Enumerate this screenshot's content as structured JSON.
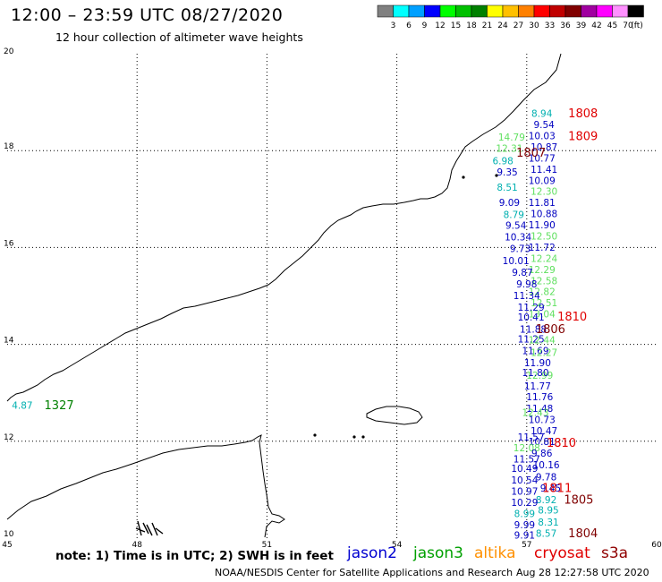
{
  "header": {
    "title": "12:00 – 23:59 UTC 08/27/2020",
    "subtitle": "12 hour collection of altimeter wave heights"
  },
  "legend": {
    "colors": [
      "#808080",
      "#00ffff",
      "#00a0ff",
      "#0000ff",
      "#00ff00",
      "#00c000",
      "#008000",
      "#ffff00",
      "#ffc000",
      "#ff8000",
      "#ff0000",
      "#c00000",
      "#800000",
      "#a000a0",
      "#ff00ff",
      "#ff90ff",
      "#000000"
    ],
    "labels": [
      "3",
      "6",
      "9",
      "12",
      "15",
      "18",
      "21",
      "24",
      "27",
      "30",
      "33",
      "36",
      "39",
      "42",
      "45",
      "70",
      "(ft)"
    ]
  },
  "axes": {
    "lon_ticks": [
      "45",
      "48",
      "51",
      "54",
      "57",
      "60"
    ],
    "lat_ticks": [
      "20",
      "18",
      "16",
      "14",
      "12",
      "10"
    ]
  },
  "observations": [
    {
      "lon": 57.35,
      "lat": 18.75,
      "v": "8.94",
      "c": "#00b0b0"
    },
    {
      "lon": 57.4,
      "lat": 18.52,
      "v": "9.54",
      "c": "#0000c0"
    },
    {
      "lon": 57.35,
      "lat": 18.29,
      "v": "10.03",
      "c": "#0000c0"
    },
    {
      "lon": 57.4,
      "lat": 18.06,
      "v": "10.87",
      "c": "#0000c0"
    },
    {
      "lon": 57.35,
      "lat": 17.83,
      "v": "10.77",
      "c": "#0000c0"
    },
    {
      "lon": 57.4,
      "lat": 17.6,
      "v": "11.41",
      "c": "#0000c0"
    },
    {
      "lon": 57.35,
      "lat": 17.37,
      "v": "10.09",
      "c": "#0000c0"
    },
    {
      "lon": 57.4,
      "lat": 17.14,
      "v": "12.30",
      "c": "#60e060"
    },
    {
      "lon": 57.35,
      "lat": 16.91,
      "v": "11.81",
      "c": "#0000c0"
    },
    {
      "lon": 57.4,
      "lat": 16.68,
      "v": "10.88",
      "c": "#0000c0"
    },
    {
      "lon": 57.35,
      "lat": 16.45,
      "v": "11.90",
      "c": "#0000c0"
    },
    {
      "lon": 57.4,
      "lat": 16.22,
      "v": "12.50",
      "c": "#60e060"
    },
    {
      "lon": 57.35,
      "lat": 15.99,
      "v": "11.72",
      "c": "#0000c0"
    },
    {
      "lon": 57.4,
      "lat": 15.76,
      "v": "12.24",
      "c": "#60e060"
    },
    {
      "lon": 57.35,
      "lat": 15.53,
      "v": "12.29",
      "c": "#60e060"
    },
    {
      "lon": 57.4,
      "lat": 15.3,
      "v": "12.58",
      "c": "#60e060"
    },
    {
      "lon": 57.35,
      "lat": 15.07,
      "v": "12.82",
      "c": "#60e060"
    },
    {
      "lon": 57.4,
      "lat": 14.84,
      "v": "12.51",
      "c": "#60e060"
    },
    {
      "lon": 57.35,
      "lat": 14.61,
      "v": "13.04",
      "c": "#60e060"
    },
    {
      "lon": 56.65,
      "lat": 18.26,
      "v": "14.79",
      "c": "#60e060"
    },
    {
      "lon": 56.6,
      "lat": 18.03,
      "v": "12.31",
      "c": "#60e060"
    },
    {
      "lon": 56.45,
      "lat": 17.77,
      "v": "6.98",
      "c": "#00b0b0"
    },
    {
      "lon": 56.55,
      "lat": 17.54,
      "v": "9.35",
      "c": "#0000c0"
    },
    {
      "lon": 56.55,
      "lat": 17.23,
      "v": "8.51",
      "c": "#00b0b0"
    },
    {
      "lon": 56.6,
      "lat": 16.91,
      "v": "9.09",
      "c": "#0000c0"
    },
    {
      "lon": 56.7,
      "lat": 16.66,
      "v": "8.79",
      "c": "#00b0b0"
    },
    {
      "lon": 56.75,
      "lat": 16.44,
      "v": "9.54",
      "c": "#0000c0"
    },
    {
      "lon": 56.8,
      "lat": 16.2,
      "v": "10.34",
      "c": "#0000c0"
    },
    {
      "lon": 56.85,
      "lat": 15.96,
      "v": "9.73",
      "c": "#0000c0"
    },
    {
      "lon": 56.75,
      "lat": 15.71,
      "v": "10.01",
      "c": "#0000c0"
    },
    {
      "lon": 56.9,
      "lat": 15.47,
      "v": "9.87",
      "c": "#0000c0"
    },
    {
      "lon": 57.0,
      "lat": 15.23,
      "v": "9.98",
      "c": "#0000c0"
    },
    {
      "lon": 57.0,
      "lat": 14.99,
      "v": "11.34",
      "c": "#0000c0"
    },
    {
      "lon": 57.1,
      "lat": 14.75,
      "v": "11.29",
      "c": "#0000c0"
    },
    {
      "lon": 57.1,
      "lat": 14.55,
      "v": "10.41",
      "c": "#0000c0"
    },
    {
      "lon": 57.15,
      "lat": 14.3,
      "v": "11.88",
      "c": "#0000c0"
    },
    {
      "lon": 57.1,
      "lat": 14.09,
      "v": "11.25",
      "c": "#0000c0"
    },
    {
      "lon": 57.35,
      "lat": 14.08,
      "v": "12.44",
      "c": "#60e060"
    },
    {
      "lon": 57.2,
      "lat": 13.85,
      "v": "11.69",
      "c": "#0000c0"
    },
    {
      "lon": 57.4,
      "lat": 13.82,
      "v": "12.27",
      "c": "#60e060"
    },
    {
      "lon": 57.25,
      "lat": 13.6,
      "v": "11.90",
      "c": "#0000c0"
    },
    {
      "lon": 57.3,
      "lat": 13.35,
      "v": "12.99",
      "c": "#60e060"
    },
    {
      "lon": 57.2,
      "lat": 13.4,
      "v": "11.80",
      "c": "#0000c0"
    },
    {
      "lon": 57.25,
      "lat": 13.12,
      "v": "11.77",
      "c": "#0000c0"
    },
    {
      "lon": 57.3,
      "lat": 12.9,
      "v": "11.76",
      "c": "#0000c0"
    },
    {
      "lon": 57.3,
      "lat": 12.66,
      "v": "11.48",
      "c": "#0000c0"
    },
    {
      "lon": 57.2,
      "lat": 12.58,
      "v": "12.43",
      "c": "#60e060"
    },
    {
      "lon": 57.35,
      "lat": 12.43,
      "v": "10.73",
      "c": "#0000c0"
    },
    {
      "lon": 57.4,
      "lat": 12.2,
      "v": "10.47",
      "c": "#0000c0"
    },
    {
      "lon": 57.1,
      "lat": 12.07,
      "v": "11.57",
      "c": "#0000c0"
    },
    {
      "lon": 57.35,
      "lat": 11.98,
      "v": "10.81",
      "c": "#0000c0"
    },
    {
      "lon": 57.0,
      "lat": 11.85,
      "v": "12.08",
      "c": "#60e060"
    },
    {
      "lon": 57.35,
      "lat": 11.74,
      "v": "9.86",
      "c": "#0000c0"
    },
    {
      "lon": 57.0,
      "lat": 11.62,
      "v": "11.57",
      "c": "#0000c0"
    },
    {
      "lon": 57.45,
      "lat": 11.5,
      "v": "10.16",
      "c": "#0000c0"
    },
    {
      "lon": 56.95,
      "lat": 11.42,
      "v": "10.49",
      "c": "#0000c0"
    },
    {
      "lon": 57.45,
      "lat": 11.25,
      "v": "9.78",
      "c": "#0000c0"
    },
    {
      "lon": 56.95,
      "lat": 11.18,
      "v": "10.54",
      "c": "#0000c0"
    },
    {
      "lon": 57.55,
      "lat": 11.02,
      "v": "9.45",
      "c": "#0000c0"
    },
    {
      "lon": 56.95,
      "lat": 10.95,
      "v": "10.97",
      "c": "#0000c0"
    },
    {
      "lon": 57.45,
      "lat": 10.78,
      "v": "8.92",
      "c": "#00b0b0"
    },
    {
      "lon": 56.95,
      "lat": 10.72,
      "v": "10.29",
      "c": "#0000c0"
    },
    {
      "lon": 57.5,
      "lat": 10.56,
      "v": "8.95",
      "c": "#00b0b0"
    },
    {
      "lon": 56.95,
      "lat": 10.49,
      "v": "8.99",
      "c": "#00b0b0"
    },
    {
      "lon": 57.5,
      "lat": 10.31,
      "v": "8.31",
      "c": "#00b0b0"
    },
    {
      "lon": 56.95,
      "lat": 10.26,
      "v": "9.99",
      "c": "#0000c0"
    },
    {
      "lon": 57.45,
      "lat": 10.08,
      "v": "8.57",
      "c": "#00b0b0"
    },
    {
      "lon": 56.95,
      "lat": 10.05,
      "v": "9.91",
      "c": "#0000c0"
    },
    {
      "lon": 45.35,
      "lat": 12.73,
      "v": "4.87",
      "c": "#00b0b0"
    }
  ],
  "times": [
    {
      "lon": 58.3,
      "lat": 18.75,
      "v": "1808",
      "c": "#e00000"
    },
    {
      "lon": 58.3,
      "lat": 18.28,
      "v": "1809",
      "c": "#e00000"
    },
    {
      "lon": 57.1,
      "lat": 17.94,
      "v": "1807",
      "c": "#800000"
    },
    {
      "lon": 58.05,
      "lat": 14.56,
      "v": "1810",
      "c": "#e00000"
    },
    {
      "lon": 57.55,
      "lat": 14.3,
      "v": "1806",
      "c": "#800000"
    },
    {
      "lon": 57.8,
      "lat": 11.95,
      "v": "1810",
      "c": "#e00000"
    },
    {
      "lon": 57.7,
      "lat": 11.02,
      "v": "1811",
      "c": "#e00000"
    },
    {
      "lon": 58.2,
      "lat": 10.78,
      "v": "1805",
      "c": "#800000"
    },
    {
      "lon": 58.3,
      "lat": 10.08,
      "v": "1804",
      "c": "#800000"
    },
    {
      "lon": 46.2,
      "lat": 12.73,
      "v": "1327",
      "c": "#008000"
    }
  ],
  "footer": {
    "note": "note: 1) Time is in UTC; 2) SWH is in feet",
    "satellites": [
      {
        "name": "jason2",
        "color": "#0000d0"
      },
      {
        "name": "jason3",
        "color": "#00a000"
      },
      {
        "name": "altika",
        "color": "#ff9000"
      },
      {
        "name": "cryosat",
        "color": "#e00000"
      },
      {
        "name": "s3a",
        "color": "#900000"
      }
    ],
    "credit": "NOAA/NESDIS Center for Satellite Applications and Research",
    "timestamp": "Aug 28 12:27:58 UTC 2020"
  }
}
